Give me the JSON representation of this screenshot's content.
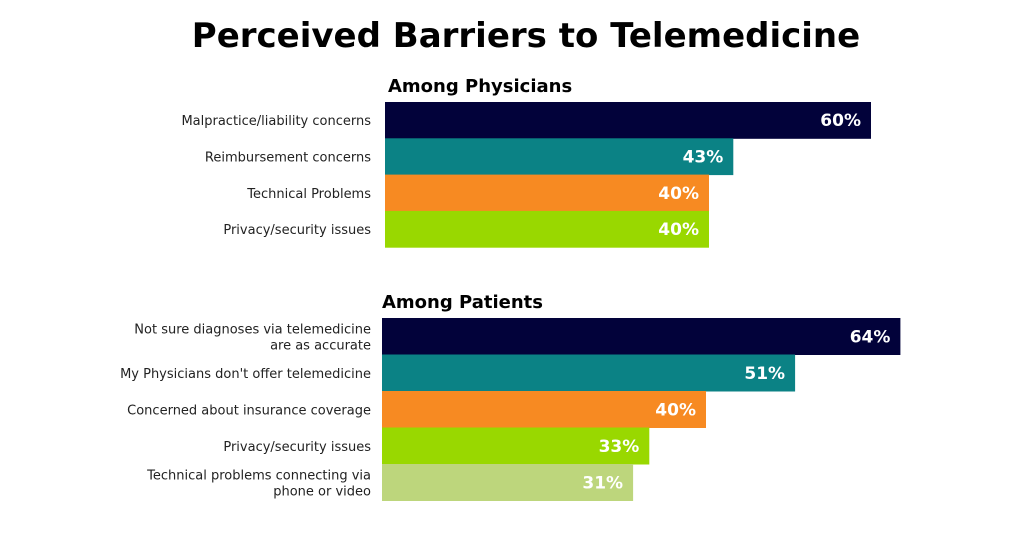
{
  "chart_data": [
    {
      "type": "bar",
      "orientation": "horizontal",
      "title": "Perceived Barriers to Telemedicine",
      "subtitle": "Among Physicians",
      "unit": "%",
      "categories": [
        [
          "Malpractice/liability concerns"
        ],
        [
          "Reimbursement concerns"
        ],
        [
          "Technical Problems"
        ],
        [
          "Privacy/security issues"
        ]
      ],
      "values": [
        60,
        43,
        40,
        40
      ],
      "colors": [
        "#02023a",
        "#0b8285",
        "#f78a22",
        "#99d800"
      ]
    },
    {
      "type": "bar",
      "orientation": "horizontal",
      "subtitle": "Among Patients",
      "unit": "%",
      "categories": [
        [
          "Not sure diagnoses via telemedicine",
          "are as accurate"
        ],
        [
          "My Physicians don't offer telemedicine"
        ],
        [
          "Concerned about insurance coverage"
        ],
        [
          "Privacy/security issues"
        ],
        [
          "Technical problems connecting via",
          "phone or video"
        ]
      ],
      "values": [
        64,
        51,
        40,
        33,
        31
      ],
      "colors": [
        "#02023a",
        "#0b8285",
        "#f78a22",
        "#99d800",
        "#bdd67c"
      ]
    }
  ]
}
